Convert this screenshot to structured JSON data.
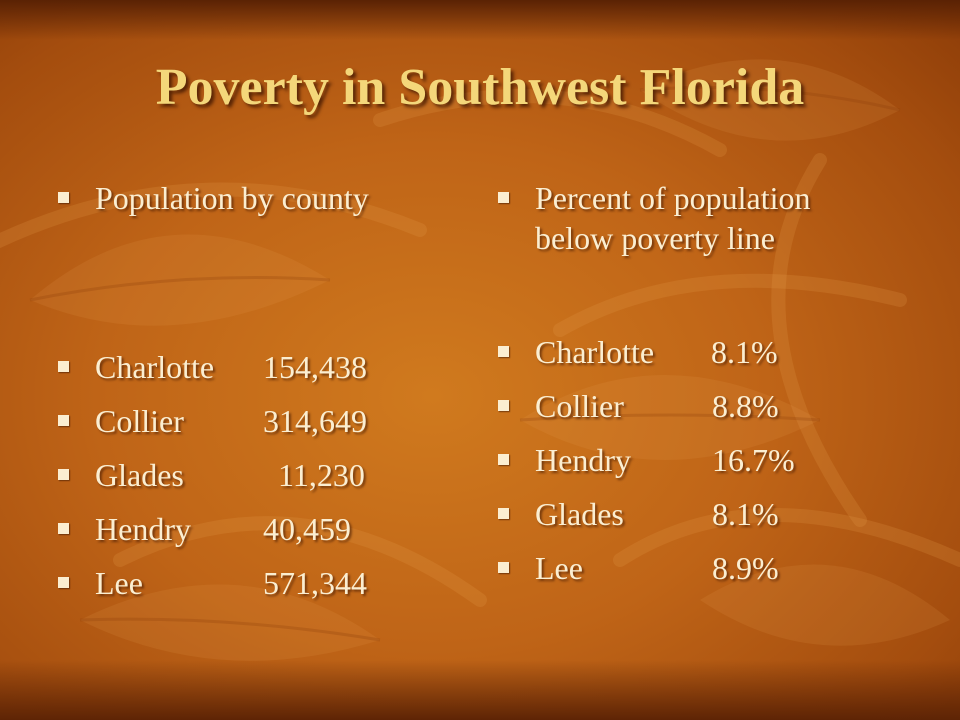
{
  "slide": {
    "title": "Poverty in Southwest Florida",
    "colors": {
      "title": "#f4d77a",
      "text": "#fbeed1",
      "background": "#c0651a"
    }
  },
  "left": {
    "heading": "Population by county",
    "rows": [
      {
        "county": "Charlotte",
        "value": "154,438"
      },
      {
        "county": "Collier",
        "value": "314,649"
      },
      {
        "county": "Glades",
        "value": "11,230"
      },
      {
        "county": "Hendry",
        "value": "40,459"
      },
      {
        "county": "Lee",
        "value": "571,344"
      }
    ]
  },
  "right": {
    "heading_line1": "Percent of population",
    "heading_line2": "below poverty line",
    "rows": [
      {
        "county": "Charlotte",
        "value": "8.1%"
      },
      {
        "county": "Collier",
        "value": "8.8%"
      },
      {
        "county": "Hendry",
        "value": "16.7%"
      },
      {
        "county": "Glades",
        "value": "8.1%"
      },
      {
        "county": "Lee",
        "value": "8.9%"
      }
    ]
  }
}
